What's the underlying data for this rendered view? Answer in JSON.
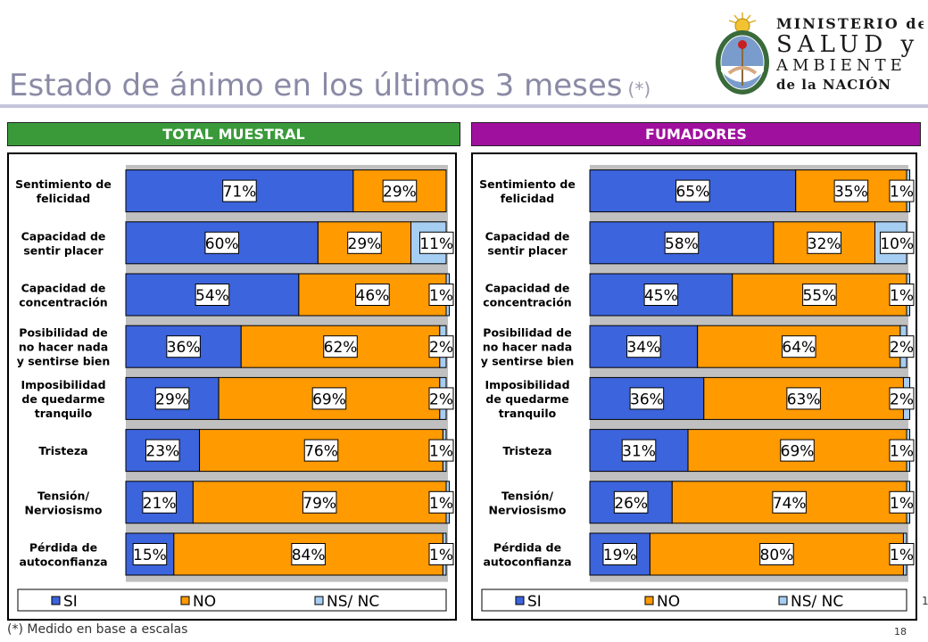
{
  "title": "Estado de ánimo en los últimos 3 meses",
  "title_note": "(*)",
  "footnote": "(*) Medido en base a escalas",
  "page_number": "18",
  "edge_mark": "1",
  "logo": {
    "line1": "MINISTERIO de",
    "line2": "SALUD y",
    "line3": "AMBIENTE",
    "line4": "de la NACIÓN"
  },
  "colors": {
    "si": "#3c64dc",
    "no": "#ff9a00",
    "nsnc": "#a6cdf2",
    "plot_bg": "#c0c0c0",
    "total_header": "#3a9a3a",
    "fumadores_header": "#a0109e"
  },
  "chart_data": [
    {
      "type": "bar",
      "orientation": "horizontal-stacked-100",
      "title": "TOTAL MUESTRAL",
      "categories": [
        "Sentimiento de felicidad",
        "Capacidad de sentir placer",
        "Capacidad de concentración",
        "Posibilidad de no hacer nada y sentirse bien",
        "Imposibilidad de quedarme tranquilo",
        "Tristeza",
        "Tensión/ Nerviosismo",
        "Pérdida de autoconfianza"
      ],
      "series": [
        {
          "name": "SI",
          "values": [
            71,
            60,
            54,
            36,
            29,
            23,
            21,
            15
          ]
        },
        {
          "name": "NO",
          "values": [
            29,
            29,
            46,
            62,
            69,
            76,
            79,
            84
          ]
        },
        {
          "name": "NS/ NC",
          "values": [
            null,
            11,
            1,
            2,
            2,
            1,
            1,
            1
          ]
        }
      ],
      "legend": "bottom"
    },
    {
      "type": "bar",
      "orientation": "horizontal-stacked-100",
      "title": "FUMADORES",
      "categories": [
        "Sentimiento de felicidad",
        "Capacidad de sentir placer",
        "Capacidad de concentración",
        "Posibilidad de no hacer nada y sentirse bien",
        "Imposibilidad de quedarme tranquilo",
        "Tristeza",
        "Tensión/ Nerviosismo",
        "Pérdida de autoconfianza"
      ],
      "series": [
        {
          "name": "SI",
          "values": [
            65,
            58,
            45,
            34,
            36,
            31,
            26,
            19
          ]
        },
        {
          "name": "NO",
          "values": [
            35,
            32,
            55,
            64,
            63,
            69,
            74,
            80
          ]
        },
        {
          "name": "NS/ NC",
          "values": [
            1,
            10,
            1,
            2,
            2,
            1,
            1,
            1
          ]
        }
      ],
      "legend": "bottom"
    }
  ]
}
